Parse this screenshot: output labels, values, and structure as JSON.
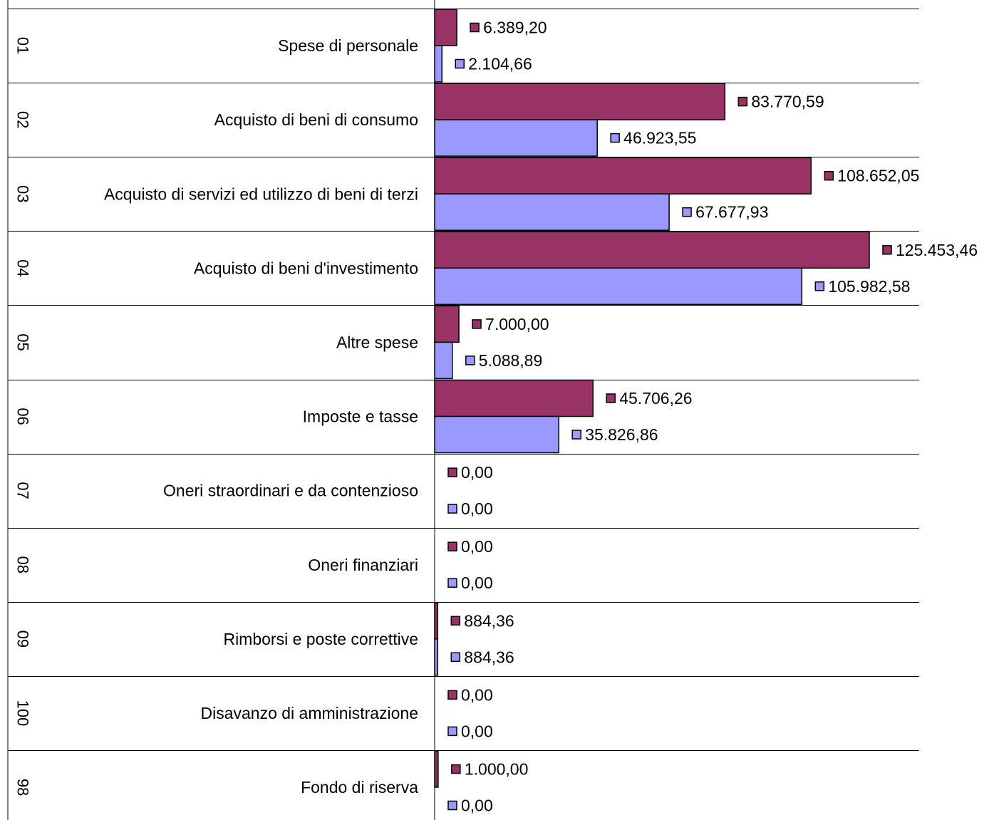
{
  "chart_data": {
    "type": "bar",
    "orientation": "horizontal",
    "title": "",
    "xlabel": "",
    "ylabel": "",
    "grid": false,
    "legend": "none",
    "xlim": [
      0,
      125453.46
    ],
    "categories": [
      {
        "code": "01",
        "label": "Spese di personale"
      },
      {
        "code": "02",
        "label": "Acquisto di beni di consumo"
      },
      {
        "code": "03",
        "label": "Acquisto di servizi ed utilizzo di beni di terzi"
      },
      {
        "code": "04",
        "label": "Acquisto di beni d'investimento"
      },
      {
        "code": "05",
        "label": "Altre spese"
      },
      {
        "code": "06",
        "label": "Imposte e tasse"
      },
      {
        "code": "07",
        "label": "Oneri straordinari e da contenzioso"
      },
      {
        "code": "08",
        "label": "Oneri finanziari"
      },
      {
        "code": "09",
        "label": "Rimborsi e poste correttive"
      },
      {
        "code": "100",
        "label": "Disavanzo di amministrazione"
      },
      {
        "code": "98",
        "label": "Fondo di riserva"
      }
    ],
    "series": [
      {
        "color": "#993366",
        "values": [
          6389.2,
          83770.59,
          108652.05,
          125453.46,
          7000.0,
          45706.26,
          0,
          0,
          884.36,
          0,
          1000.0
        ],
        "labels": [
          "6.389,20",
          "83.770,59",
          "108.652,05",
          "125.453,46",
          "7.000,00",
          "45.706,26",
          "0,00",
          "0,00",
          "884,36",
          "0,00",
          "1.000,00"
        ]
      },
      {
        "color": "#9999ff",
        "values": [
          2104.66,
          46923.55,
          67677.93,
          105982.58,
          5088.89,
          35826.86,
          0,
          0,
          884.36,
          0,
          0
        ],
        "labels": [
          "2.104,66",
          "46.923,55",
          "67.677,93",
          "105.982,58",
          "5.088,89",
          "35.826,86",
          "0,00",
          "0,00",
          "884,36",
          "0,00",
          "0,00"
        ]
      }
    ]
  }
}
